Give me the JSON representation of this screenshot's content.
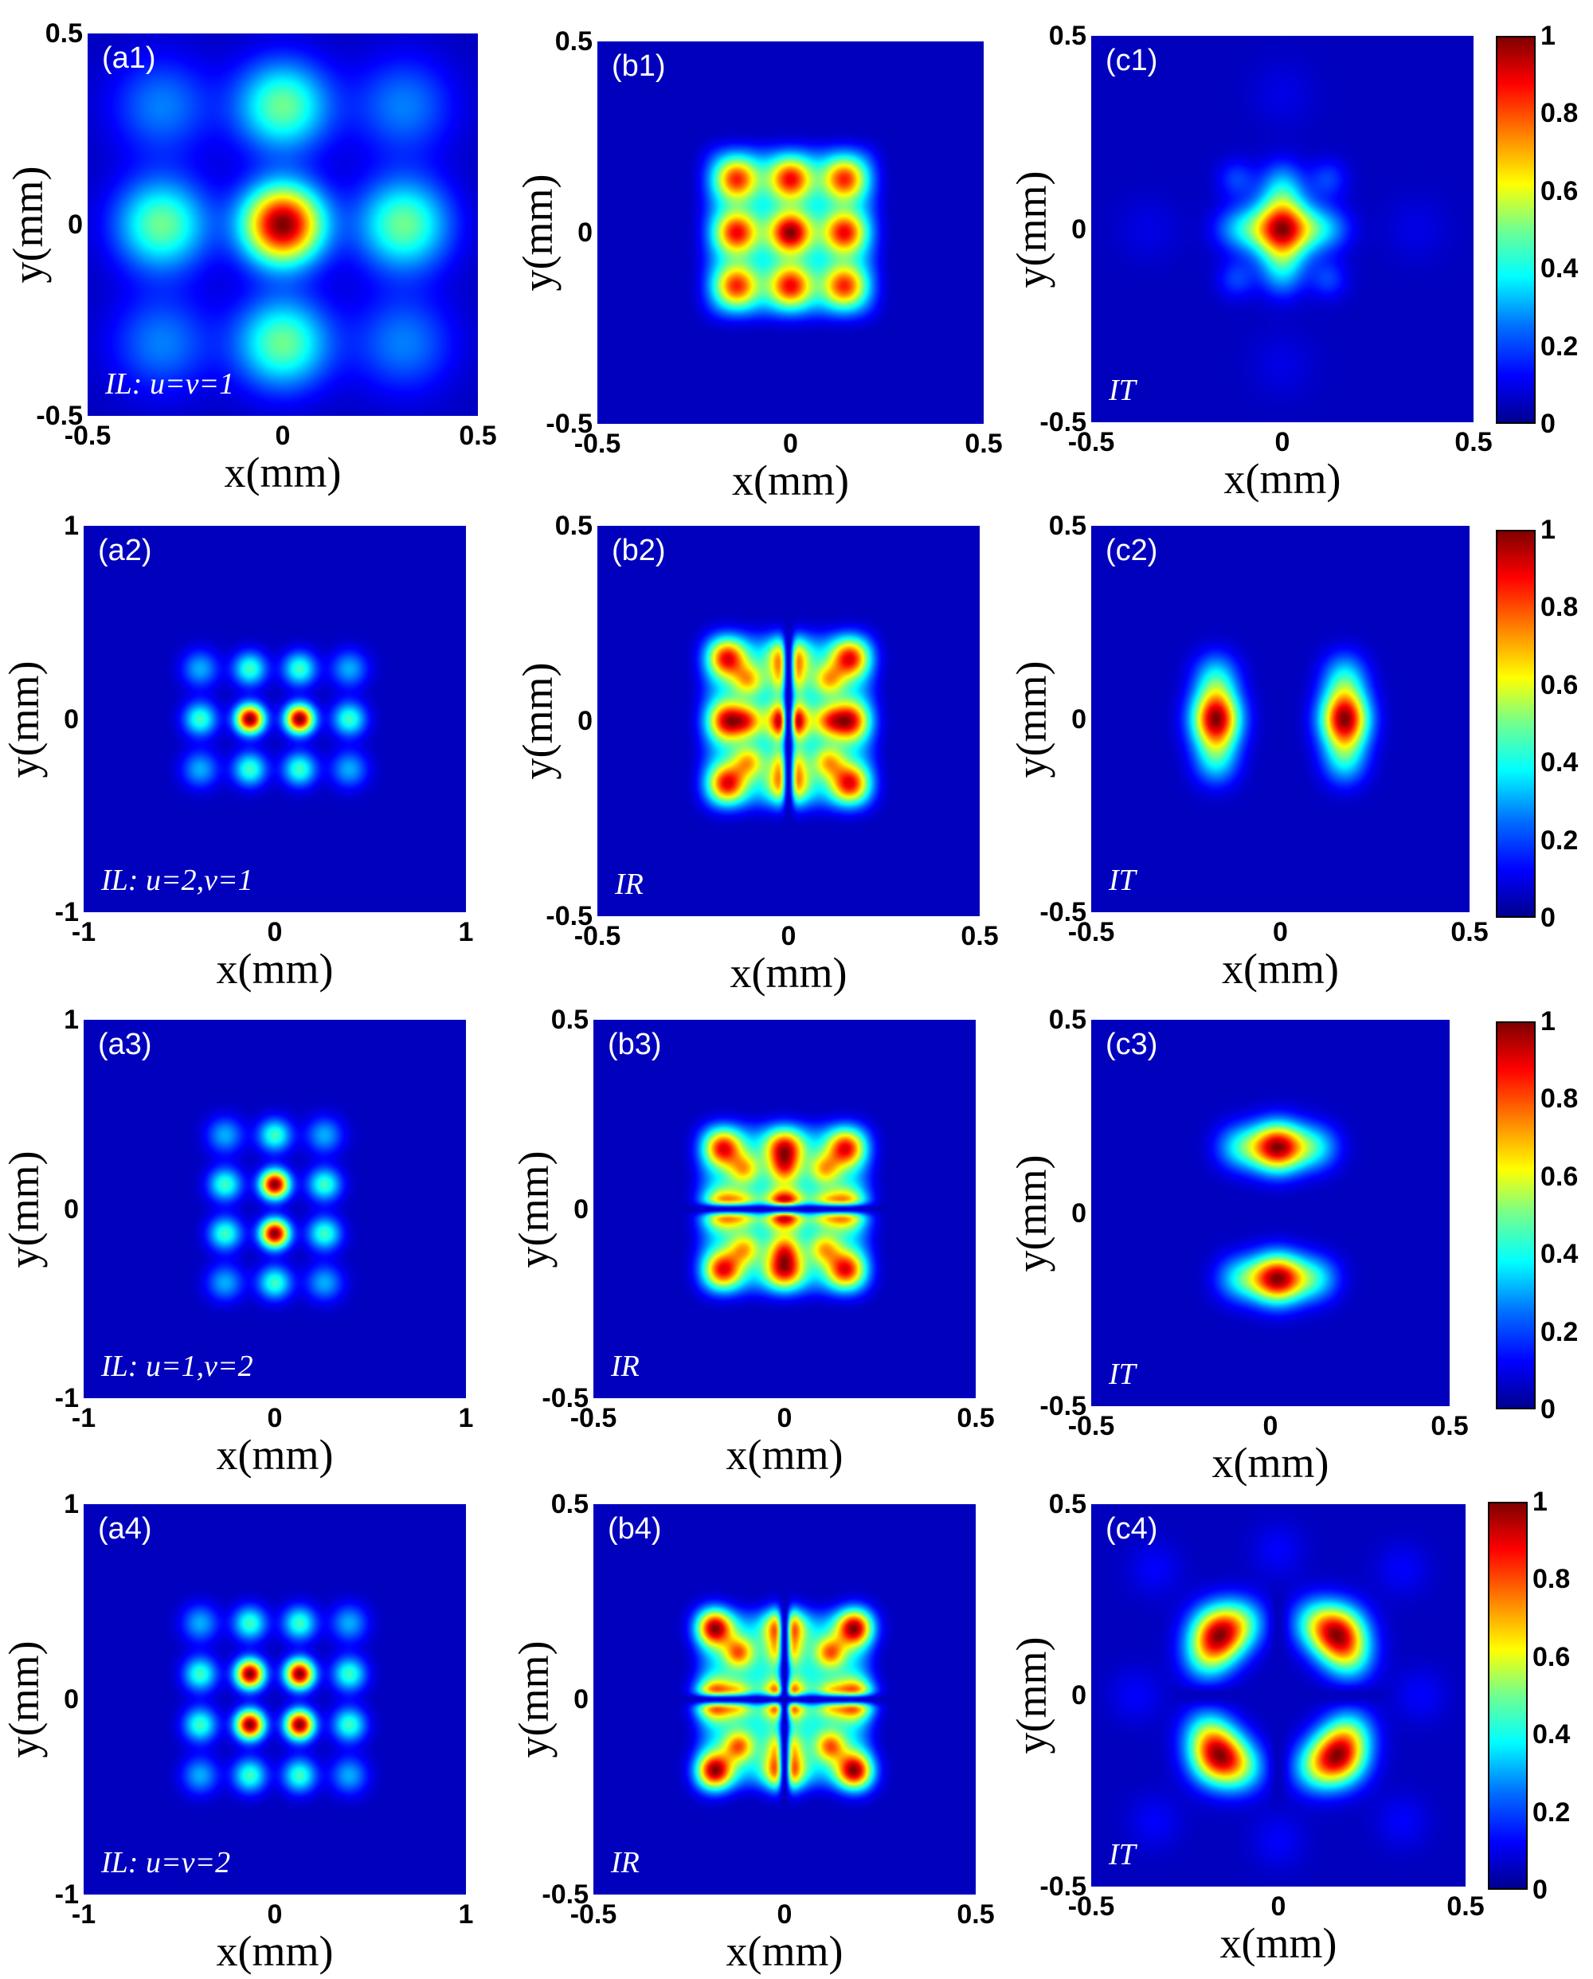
{
  "chart_data": [
    {
      "type": "heatmap",
      "panel": "(a1)",
      "note": "IL:  u=v=1",
      "xlabel": "x(mm)",
      "ylabel": "y(mm)",
      "xlim": [
        -0.5,
        0.5
      ],
      "ylim": [
        -0.5,
        0.5
      ],
      "xticks": [
        "-0.5",
        "0",
        "0.5"
      ],
      "yticks": [
        "0.5",
        "0",
        "-0.5"
      ],
      "pattern": {
        "kind": "lattice",
        "u": 1,
        "v": 1,
        "nx": 1,
        "ny": 1,
        "spacing": 0.31,
        "sigma": 0.075,
        "size": 0.09,
        "side": 0.45,
        "corner": 0.2,
        "scale": 0.65
      }
    },
    {
      "type": "heatmap",
      "panel": "(b1)",
      "note": "",
      "xlabel": "x(mm)",
      "ylabel": "y(mm)",
      "xlim": [
        -0.5,
        0.5
      ],
      "ylim": [
        -0.5,
        0.5
      ],
      "xticks": [
        "-0.5",
        "0",
        "0.5"
      ],
      "yticks": [
        "0.5",
        "0",
        "-0.5"
      ],
      "pattern": {
        "kind": "grid3",
        "g": 0.14,
        "sigma": 0.038,
        "center": 1.0,
        "edge": 0.85,
        "corner": 0.8
      }
    },
    {
      "type": "heatmap",
      "panel": "(c1)",
      "note": "IT",
      "xlabel": "x(mm)",
      "ylabel": "y(mm)",
      "xlim": [
        -0.5,
        0.5
      ],
      "ylim": [
        -0.5,
        0.5
      ],
      "xticks": [
        "-0.5",
        "0",
        "0.5"
      ],
      "yticks": [
        "0.5",
        "0",
        "-0.5"
      ],
      "colorbar": {
        "ticks": [
          "1",
          "0.8",
          "0.6",
          "0.4",
          "0.2",
          "0"
        ]
      },
      "pattern": {
        "kind": "cross",
        "arm": 0.14,
        "sigma": 0.05
      }
    },
    {
      "type": "heatmap",
      "panel": "(a2)",
      "note": "IL: u=2,v=1",
      "xlabel": "x(mm)",
      "ylabel": "y(mm)",
      "xlim": [
        -1,
        1
      ],
      "ylim": [
        -1,
        1
      ],
      "xticks": [
        "-1",
        "0",
        "1"
      ],
      "yticks": [
        "1",
        "0",
        "-1"
      ],
      "pattern": {
        "kind": "lattice",
        "u": 2,
        "v": 1,
        "nx": 2,
        "ny": 1,
        "spacing": 0.26,
        "sigma": 0.055,
        "size": 0.06,
        "side": 0.4,
        "corner": 0.25,
        "scale": 1.0
      }
    },
    {
      "type": "heatmap",
      "panel": "(b2)",
      "note": "IR",
      "xlabel": "x(mm)",
      "ylabel": "y(mm)",
      "xlim": [
        -0.5,
        0.5
      ],
      "ylim": [
        -0.5,
        0.5
      ],
      "xticks": [
        "-0.5",
        "0",
        "0.5"
      ],
      "yticks": [
        "0.5",
        "0",
        "-0.5"
      ],
      "pattern": {
        "kind": "split",
        "axis": "x",
        "g": 0.14,
        "sigma": 0.035
      }
    },
    {
      "type": "heatmap",
      "panel": "(c2)",
      "note": "IT",
      "xlabel": "x(mm)",
      "ylabel": "y(mm)",
      "xlim": [
        -0.5,
        0.5
      ],
      "ylim": [
        -0.5,
        0.5
      ],
      "xticks": [
        "-0.5",
        "0",
        "0.5"
      ],
      "yticks": [
        "0.5",
        "0",
        "-0.5"
      ],
      "colorbar": {
        "ticks": [
          "1",
          "0.8",
          "0.6",
          "0.4",
          "0.2",
          "0"
        ]
      },
      "pattern": {
        "kind": "lobes",
        "axis": "x",
        "offset": 0.17,
        "sigma": 0.045
      }
    },
    {
      "type": "heatmap",
      "panel": "(a3)",
      "note": "IL: u=1,v=2",
      "xlabel": "x(mm)",
      "ylabel": "y(mm)",
      "xlim": [
        -1,
        1
      ],
      "ylim": [
        -1,
        1
      ],
      "xticks": [
        "-1",
        "0",
        "1"
      ],
      "yticks": [
        "1",
        "0",
        "-1"
      ],
      "pattern": {
        "kind": "lattice",
        "u": 1,
        "v": 2,
        "nx": 1,
        "ny": 2,
        "spacing": 0.26,
        "sigma": 0.055,
        "size": 0.06,
        "side": 0.4,
        "corner": 0.25,
        "scale": 1.0
      }
    },
    {
      "type": "heatmap",
      "panel": "(b3)",
      "note": "IR",
      "xlabel": "x(mm)",
      "ylabel": "y(mm)",
      "xlim": [
        -0.5,
        0.5
      ],
      "ylim": [
        -0.5,
        0.5
      ],
      "xticks": [
        "-0.5",
        "0",
        "0.5"
      ],
      "yticks": [
        "0.5",
        "0",
        "-0.5"
      ],
      "pattern": {
        "kind": "split",
        "axis": "y",
        "g": 0.14,
        "sigma": 0.035
      }
    },
    {
      "type": "heatmap",
      "panel": "(c3)",
      "note": "IT",
      "xlabel": "x(mm)",
      "ylabel": "y(mm)",
      "xlim": [
        -0.5,
        0.5
      ],
      "ylim": [
        -0.5,
        0.5
      ],
      "xticks": [
        "-0.5",
        "0",
        "0.5"
      ],
      "yticks": [
        "0.5",
        "0",
        "-0.5"
      ],
      "colorbar": {
        "ticks": [
          "1",
          "0.8",
          "0.6",
          "0.4",
          "0.2",
          "0"
        ]
      },
      "pattern": {
        "kind": "lobes",
        "axis": "y",
        "offset": 0.17,
        "sigma": 0.045
      }
    },
    {
      "type": "heatmap",
      "panel": "(a4)",
      "note": "IL: u=v=2",
      "xlabel": "x(mm)",
      "ylabel": "y(mm)",
      "xlim": [
        -1,
        1
      ],
      "ylim": [
        -1,
        1
      ],
      "xticks": [
        "-1",
        "0",
        "1"
      ],
      "yticks": [
        "1",
        "0",
        "-1"
      ],
      "pattern": {
        "kind": "lattice",
        "u": 2,
        "v": 2,
        "nx": 2,
        "ny": 2,
        "spacing": 0.26,
        "sigma": 0.055,
        "size": 0.06,
        "side": 0.4,
        "corner": 0.25,
        "scale": 1.0
      }
    },
    {
      "type": "heatmap",
      "panel": "(b4)",
      "note": "IR",
      "xlabel": "x(mm)",
      "ylabel": "y(mm)",
      "xlim": [
        -0.5,
        0.5
      ],
      "ylim": [
        -0.5,
        0.5
      ],
      "xticks": [
        "-0.5",
        "0",
        "0.5"
      ],
      "yticks": [
        "0.5",
        "0",
        "-0.5"
      ],
      "pattern": {
        "kind": "split",
        "axis": "xy",
        "g": 0.16,
        "sigma": 0.033
      }
    },
    {
      "type": "heatmap",
      "panel": "(c4)",
      "note": "IT",
      "xlabel": "x(mm)",
      "ylabel": "y(mm)",
      "xlim": [
        -0.5,
        0.5
      ],
      "ylim": [
        -0.5,
        0.5
      ],
      "xticks": [
        "-0.5",
        "0",
        "0.5"
      ],
      "yticks": [
        "0.5",
        "0",
        "-0.5"
      ],
      "colorbar": {
        "ticks": [
          "1",
          "0.8",
          "0.6",
          "0.4",
          "0.2",
          "0"
        ]
      },
      "pattern": {
        "kind": "quad",
        "offset": 0.16,
        "sigma": 0.05
      }
    }
  ]
}
